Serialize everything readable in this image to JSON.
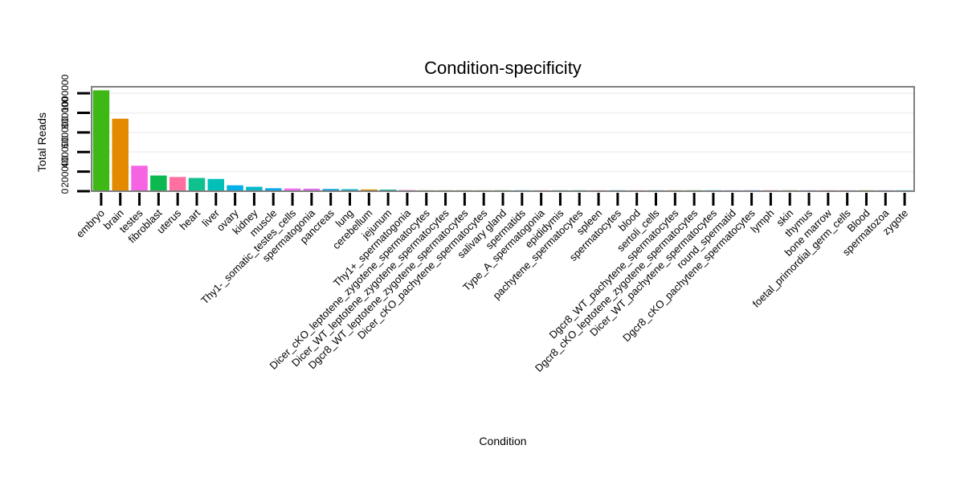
{
  "chart_data": {
    "type": "bar",
    "title": "Condition-specificity",
    "xlabel": "Condition",
    "ylabel": "Total Reads",
    "ylim": [
      0,
      1050000
    ],
    "yticks": [
      0,
      200000,
      400000,
      600000,
      800000,
      1000000
    ],
    "ytick_labels": [
      "0",
      "200000",
      "400000",
      "600000",
      "800000",
      "1000000"
    ],
    "grid": true,
    "categories": [
      "embryo",
      "brain",
      "testes",
      "fibroblast",
      "uterus",
      "heart",
      "liver",
      "ovary",
      "kidney",
      "muscle",
      "Thy1-_somatic_testes_cells",
      "spermatogonia",
      "pancreas",
      "lung",
      "cerebellum",
      "jejunum",
      "Thy1+_spermatogonia",
      "Dicer_cKO_leptotene_zygotene_spermatocytes",
      "Dicer_WT_leptotene_zygotene_spermatocytes",
      "Dgcr8_WT_leptotene_zygotene_spermatocytes",
      "Dicer_cKO_pachytene_spermatocytes",
      "salivary gland",
      "spermatids",
      "Type_A_spermatogonia",
      "epididymis",
      "pachytene_spermatocytes",
      "spleen",
      "spermatocytes",
      "blood",
      "sertoli_cells",
      "Dgcr8_WT_pachytene_spermatocytes",
      "Dgcr8_cKO_leptotene_zygotene_spermatocytes",
      "Dicer_WT_pachytene_spermatocytes",
      "round_spermatid",
      "Dgcr8_cKO_pachytene_spermatocytes",
      "lymph",
      "skin",
      "thymus",
      "bone marrow",
      "foetal_primordial_germ_cells",
      "Blood",
      "spermatozoa",
      "zygote"
    ],
    "values": [
      1030000,
      740000,
      260000,
      160000,
      145000,
      135000,
      125000,
      60000,
      45000,
      30000,
      28000,
      26000,
      22000,
      20000,
      18000,
      16000,
      12000,
      10000,
      9000,
      8500,
      8000,
      7500,
      7000,
      6500,
      6000,
      5500,
      5000,
      2000,
      1800,
      1500,
      1300,
      1200,
      1100,
      1000,
      900,
      700,
      600,
      500,
      400,
      300,
      200,
      150,
      100
    ],
    "colors": [
      "#3DB814",
      "#E38A00",
      "#F565E3",
      "#0CB84F",
      "#FF6FA0",
      "#10C08E",
      "#00C0B8",
      "#00B0E8",
      "#00B8C8",
      "#00A8F0",
      "#F070F0",
      "#E070E8",
      "#00A0E0",
      "#00B0C8",
      "#E09000",
      "#00B0A0",
      "#F070D0",
      "#C0A020",
      "#A8A800",
      "#B0A400",
      "#C09C10",
      "#40B040",
      "#00B0B0",
      "#E070D0",
      "#40B070",
      "#20B090",
      "#FF70B0",
      "#00A8D0",
      "#F080C0",
      "#20B8A0",
      "#C0A000",
      "#50B040",
      "#00B8D0",
      "#D07CF0",
      "#7070F8",
      "#F06080",
      "#60B010",
      "#B080F8",
      "#FF6870",
      "#E878F0",
      "#90A800",
      "#A094F8",
      "#00BCD8"
    ]
  }
}
